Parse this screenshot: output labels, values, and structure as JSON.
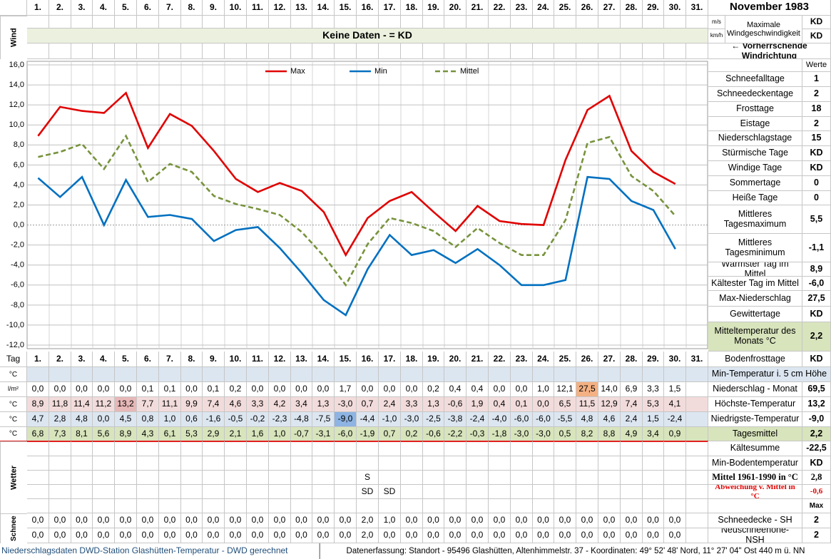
{
  "chart_data": {
    "type": "line",
    "categories": [
      "1.",
      "2.",
      "3.",
      "4.",
      "5.",
      "6.",
      "7.",
      "8.",
      "9.",
      "10.",
      "11.",
      "12.",
      "13.",
      "14.",
      "15.",
      "16.",
      "17.",
      "18.",
      "19.",
      "20.",
      "21.",
      "22.",
      "23.",
      "24.",
      "25.",
      "26.",
      "27.",
      "28.",
      "29.",
      "30.",
      "31."
    ],
    "series": [
      {
        "name": "Max",
        "color": "#e00000",
        "dashed": false,
        "values": [
          8.9,
          11.8,
          11.4,
          11.2,
          13.2,
          7.7,
          11.1,
          9.9,
          7.4,
          4.6,
          3.3,
          4.2,
          3.4,
          1.3,
          -3.0,
          0.7,
          2.4,
          3.3,
          1.3,
          -0.6,
          1.9,
          0.4,
          0.1,
          0.0,
          6.5,
          11.5,
          12.9,
          7.4,
          5.3,
          4.1,
          null
        ],
        "value_labels": [
          "8,9",
          "11,8",
          "11,4",
          "11,2",
          "13,2",
          "7,7",
          "11,1",
          "9,9",
          "7,4",
          "4,6",
          "3,3",
          "4,2",
          "3,4",
          "1,3",
          "-3,0",
          "0,7",
          "2,4",
          "3,3",
          "1,3",
          "-0,6",
          "1,9",
          "0,4",
          "0,1",
          "0,0",
          "6,5",
          "11,5",
          "12,9",
          "7,4",
          "5,3",
          "4,1",
          null
        ]
      },
      {
        "name": "Min",
        "color": "#0070c0",
        "dashed": false,
        "values": [
          4.7,
          2.8,
          4.8,
          0.0,
          4.5,
          0.8,
          1.0,
          0.6,
          -1.6,
          -0.5,
          -0.2,
          -2.3,
          -4.8,
          -7.5,
          -9.0,
          -4.4,
          -1.0,
          -3.0,
          -2.5,
          -3.8,
          -2.4,
          -4.0,
          -6.0,
          -6.0,
          -5.5,
          4.8,
          4.6,
          2.4,
          1.5,
          -2.4,
          null
        ],
        "value_labels": [
          "4,7",
          "2,8",
          "4,8",
          "0,0",
          "4,5",
          "0,8",
          "1,0",
          "0,6",
          "-1,6",
          "-0,5",
          "-0,2",
          "-2,3",
          "-4,8",
          "-7,5",
          "-9,0",
          "-4,4",
          "-1,0",
          "-3,0",
          "-2,5",
          "-3,8",
          "-2,4",
          "-4,0",
          "-6,0",
          "-6,0",
          "-5,5",
          "4,8",
          "4,6",
          "2,4",
          "1,5",
          "-2,4",
          null
        ]
      },
      {
        "name": "Mittel",
        "color": "#77933c",
        "dashed": true,
        "values": [
          6.8,
          7.3,
          8.1,
          5.6,
          8.9,
          4.3,
          6.1,
          5.3,
          2.9,
          2.1,
          1.6,
          1.0,
          -0.7,
          -3.1,
          -6.0,
          -1.9,
          0.7,
          0.2,
          -0.6,
          -2.2,
          -0.3,
          -1.8,
          -3.0,
          -3.0,
          0.5,
          8.2,
          8.8,
          4.9,
          3.4,
          0.9,
          null
        ],
        "value_labels": [
          "6,8",
          "7,3",
          "8,1",
          "5,6",
          "8,9",
          "4,3",
          "6,1",
          "5,3",
          "2,9",
          "2,1",
          "1,6",
          "1,0",
          "-0,7",
          "-3,1",
          "-6,0",
          "-1,9",
          "0,7",
          "0,2",
          "-0,6",
          "-2,2",
          "-0,3",
          "-1,8",
          "-3,0",
          "-3,0",
          "0,5",
          "8,2",
          "8,8",
          "4,9",
          "3,4",
          "0,9",
          null
        ]
      }
    ],
    "ylim": [
      -12,
      16
    ],
    "yticks": [
      {
        "value": 16,
        "label": "16,0"
      },
      {
        "value": 14,
        "label": "14,0"
      },
      {
        "value": 12,
        "label": "12,0"
      },
      {
        "value": 10,
        "label": "10,0"
      },
      {
        "value": 8,
        "label": "8,0"
      },
      {
        "value": 6,
        "label": "6,0"
      },
      {
        "value": 4,
        "label": "4,0"
      },
      {
        "value": 2,
        "label": "2,0"
      },
      {
        "value": 0,
        "label": "0,0"
      },
      {
        "value": -2,
        "label": "-2,0"
      },
      {
        "value": -4,
        "label": "-4,0"
      },
      {
        "value": -6,
        "label": "-6,0"
      },
      {
        "value": -8,
        "label": "-8,0"
      },
      {
        "value": -10,
        "label": "-10,0"
      },
      {
        "value": -12,
        "label": "-12,0"
      }
    ],
    "grid": true,
    "legend": "top"
  },
  "header": {
    "title": "November 1983"
  },
  "wind": {
    "label": "Wind",
    "units": [
      "m/s",
      "km/h"
    ],
    "heading": "Maximale Windgeschwindigkeit",
    "values": [
      "KD",
      "KD"
    ],
    "note": "Keine Daten -  = KD",
    "direction": "← Vorherrschende Windrichtung"
  },
  "stats_header": "Werte",
  "stats": [
    {
      "label": "Schneefalltage",
      "value": "1"
    },
    {
      "label": "Schneedeckentage",
      "value": "2"
    },
    {
      "label": "Frosttage",
      "value": "18"
    },
    {
      "label": "Eistage",
      "value": "2"
    },
    {
      "label": "Niederschlagstage",
      "value": "15"
    },
    {
      "label": "Stürmische Tage",
      "value": "KD"
    },
    {
      "label": "Windige Tage",
      "value": "KD"
    },
    {
      "label": "Sommertage",
      "value": "0"
    },
    {
      "label": "Heiße Tage",
      "value": "0"
    },
    {
      "label": "Mittleres Tagesmaximum",
      "value": "5,5"
    },
    {
      "label": "Mittleres Tagesminimum",
      "value": "-1,1"
    },
    {
      "label": "Wärmster Tag im Mittel",
      "value": "8,9"
    },
    {
      "label": "Kältester Tag im Mittel",
      "value": "-6,0"
    },
    {
      "label": "Max-Niederschlag",
      "value": "27,5"
    },
    {
      "label": "Gewittertage",
      "value": "KD"
    },
    {
      "label": "Mitteltemperatur des Monats °C",
      "value": "2,2"
    },
    {
      "label": "Bodenfrosttage",
      "value": "KD"
    },
    {
      "label": "Min-Temperatur i. 5 cm Höhe"
    },
    {
      "label": "Niederschlag - Monat",
      "value": "69,5"
    },
    {
      "label": "Höchste-Temperatur",
      "value": "13,2"
    },
    {
      "label": "Niedrigste-Temperatur",
      "value": "-9,0"
    },
    {
      "label": "Tagesmittel",
      "value": "2,2"
    },
    {
      "label": "Kältesumme",
      "value": "-22,5"
    },
    {
      "label": "Min-Bodentemperatur",
      "value": "KD"
    },
    {
      "label": "Mittel 1961-1990 in °C",
      "value": "2,8"
    },
    {
      "label": "Abweichung v. Mittel in °C",
      "value": "-0,6"
    },
    {
      "value": "Max"
    },
    {
      "label": "Schneedecke -  SH",
      "value": "2"
    },
    {
      "label": "Neuschneehöhe- NSH",
      "value": "2"
    }
  ],
  "row_labels": {
    "tag": "Tag",
    "min5": "°C",
    "precip": "l/m²",
    "max": "°C",
    "min": "°C",
    "mean": "°C",
    "weather": "Wetter",
    "snow": "Schnee"
  },
  "precipitation": {
    "values": [
      "0,0",
      "0,0",
      "0,0",
      "0,0",
      "0,0",
      "0,1",
      "0,1",
      "0,0",
      "0,1",
      "0,2",
      "0,0",
      "0,0",
      "0,0",
      "0,0",
      "1,7",
      "0,0",
      "0,0",
      "0,0",
      "0,2",
      "0,4",
      "0,4",
      "0,0",
      "0,0",
      "1,0",
      "12,1",
      "27,5",
      "14,0",
      "6,9",
      "3,3",
      "1,5"
    ]
  },
  "weather": {
    "lines": [
      [
        null,
        null,
        null,
        null,
        null,
        null,
        null,
        null,
        null,
        null,
        null,
        null,
        null,
        null,
        null,
        "S",
        null,
        null,
        null,
        null,
        null,
        null,
        null,
        null,
        null,
        null,
        null,
        null,
        null,
        null,
        null
      ],
      [
        null,
        null,
        null,
        null,
        null,
        null,
        null,
        null,
        null,
        null,
        null,
        null,
        null,
        null,
        null,
        "SD",
        "SD",
        null,
        null,
        null,
        null,
        null,
        null,
        null,
        null,
        null,
        null,
        null,
        null,
        null,
        null
      ]
    ]
  },
  "snow": {
    "SH": [
      "0,0",
      "0,0",
      "0,0",
      "0,0",
      "0,0",
      "0,0",
      "0,0",
      "0,0",
      "0,0",
      "0,0",
      "0,0",
      "0,0",
      "0,0",
      "0,0",
      "0,0",
      "2,0",
      "1,0",
      "0,0",
      "0,0",
      "0,0",
      "0,0",
      "0,0",
      "0,0",
      "0,0",
      "0,0",
      "0,0",
      "0,0",
      "0,0",
      "0,0",
      "0,0"
    ],
    "NSH": [
      "0,0",
      "0,0",
      "0,0",
      "0,0",
      "0,0",
      "0,0",
      "0,0",
      "0,0",
      "0,0",
      "0,0",
      "0,0",
      "0,0",
      "0,0",
      "0,0",
      "0,0",
      "2,0",
      "0,0",
      "0,0",
      "0,0",
      "0,0",
      "0,0",
      "0,0",
      "0,0",
      "0,0",
      "0,0",
      "0,0",
      "0,0",
      "0,0",
      "0,0",
      "0,0"
    ]
  },
  "footer": {
    "left": "Niederschlagsdaten DWD-Station Glashütten-Temperatur -  DWD gerechnet",
    "right": "Datenerfassung: Standort -  95496 Glashütten, Altenhimmelstr. 37 - Koordinaten: 49° 52' 48' Nord,  11° 27' 04\" Ost  440 m ü. NN"
  }
}
